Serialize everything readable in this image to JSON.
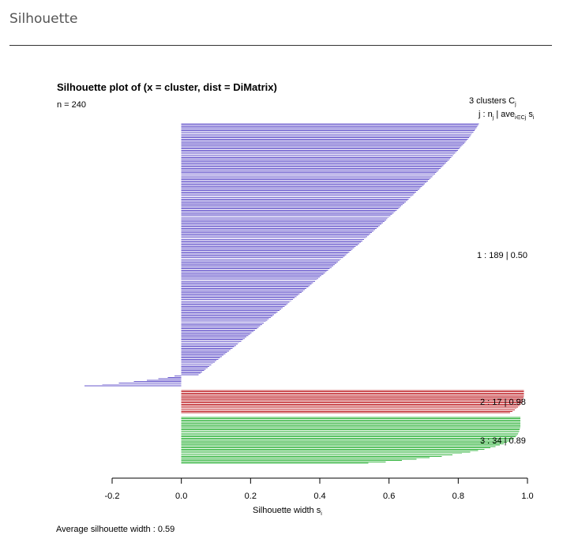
{
  "page": {
    "title": "Silhouette"
  },
  "chart_data": {
    "type": "bar",
    "title": "Silhouette plot of (x = cluster, dist = DiMatrix)",
    "subtitle": "n = 240",
    "xlabel": "Silhouette width s",
    "xlabel_sub": "i",
    "xlim": [
      -0.2,
      1.0
    ],
    "xticks": [
      "-0.2",
      "0.0",
      "0.2",
      "0.4",
      "0.6",
      "0.8",
      "1.0"
    ],
    "legend_header": {
      "line1": "3  clusters  C",
      "line1_sub": "j",
      "line2": "j :  n",
      "line2_sub1": "j",
      "line2_mid": " | ave",
      "line2_sub2": "i∈Cj",
      "line2_end": "  s",
      "line2_sub3": "i"
    },
    "footer": "Average silhouette width :  0.59",
    "clusters": [
      {
        "id": 1,
        "n": 189,
        "avg": 0.5,
        "label": "1 :  189  |  0.50",
        "color": "#6a5acd",
        "width_max": 0.86,
        "width_min": -0.28
      },
      {
        "id": 2,
        "n": 17,
        "avg": 0.98,
        "label": "2 :  17  |  0.98",
        "color": "#c0282d",
        "width_max": 0.99,
        "width_min": 0.95
      },
      {
        "id": 3,
        "n": 34,
        "avg": 0.89,
        "label": "3 :  34  |  0.89",
        "color": "#36b540",
        "width_max": 0.98,
        "width_min": 0.54
      }
    ]
  }
}
